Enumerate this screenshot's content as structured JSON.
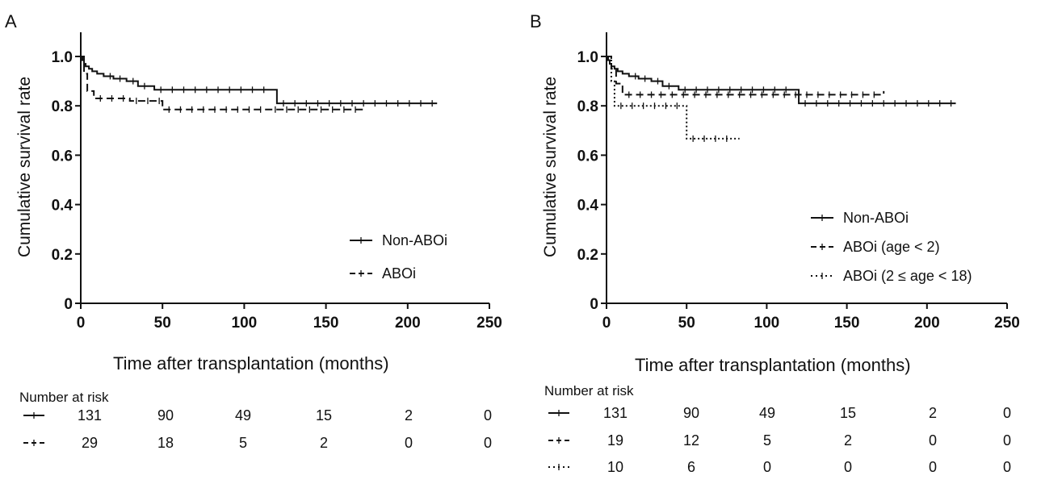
{
  "panels": [
    {
      "label": "A",
      "ylabel": "Cumulative survival rate",
      "xlabel": "Time after transplantation (months)",
      "risk_title": "Number at risk",
      "legend": [
        {
          "name": "Non-ABOi",
          "style": "solid"
        },
        {
          "name": "ABOi",
          "style": "dashed"
        }
      ],
      "risk_table": [
        {
          "style": "solid",
          "values": [
            131,
            90,
            49,
            15,
            2,
            0
          ]
        },
        {
          "style": "dashed",
          "values": [
            29,
            18,
            5,
            2,
            0,
            0
          ]
        }
      ]
    },
    {
      "label": "B",
      "ylabel": "Cumulative survival rate",
      "xlabel": "Time after transplantation (months)",
      "risk_title": "Number at risk",
      "legend": [
        {
          "name": "Non-ABOi",
          "style": "solid"
        },
        {
          "name": "ABOi (age < 2)",
          "style": "dashed"
        },
        {
          "name": "ABOi (2 ≤ age < 18)",
          "style": "dotted"
        }
      ],
      "risk_table": [
        {
          "style": "solid",
          "values": [
            131,
            90,
            49,
            15,
            2,
            0
          ]
        },
        {
          "style": "dashed",
          "values": [
            19,
            12,
            5,
            2,
            0,
            0
          ]
        },
        {
          "style": "dotted",
          "values": [
            10,
            6,
            0,
            0,
            0,
            0
          ]
        }
      ]
    }
  ],
  "chart_data": [
    {
      "type": "line",
      "title": "",
      "xlabel": "Time after transplantation (months)",
      "ylabel": "Cumulative survival rate",
      "xlim": [
        0,
        250
      ],
      "ylim": [
        0,
        1.0
      ],
      "xticks": [
        0,
        50,
        100,
        150,
        200,
        250
      ],
      "yticks": [
        0,
        0.2,
        0.4,
        0.6,
        0.8,
        1.0
      ],
      "grid": false,
      "legend_position": "lower-right",
      "series": [
        {
          "name": "Non-ABOi",
          "style": "solid",
          "x": [
            0,
            1,
            2,
            3,
            5,
            7,
            10,
            14,
            20,
            28,
            35,
            45,
            120,
            218
          ],
          "y": [
            1.0,
            0.985,
            0.97,
            0.96,
            0.95,
            0.94,
            0.93,
            0.92,
            0.91,
            0.9,
            0.88,
            0.865,
            0.81,
            0.81
          ]
        },
        {
          "name": "ABOi",
          "style": "dashed",
          "x": [
            0,
            2,
            4,
            8,
            30,
            50,
            115,
            173
          ],
          "y": [
            1.0,
            0.93,
            0.86,
            0.83,
            0.82,
            0.785,
            0.785,
            0.785
          ]
        }
      ]
    },
    {
      "type": "line",
      "title": "",
      "xlabel": "Time after transplantation (months)",
      "ylabel": "Cumulative survival rate",
      "xlim": [
        0,
        250
      ],
      "ylim": [
        0,
        1.0
      ],
      "xticks": [
        0,
        50,
        100,
        150,
        200,
        250
      ],
      "yticks": [
        0,
        0.2,
        0.4,
        0.6,
        0.8,
        1.0
      ],
      "grid": false,
      "legend_position": "lower-right",
      "series": [
        {
          "name": "Non-ABOi",
          "style": "solid",
          "x": [
            0,
            1,
            2,
            3,
            5,
            7,
            10,
            14,
            20,
            28,
            35,
            45,
            120,
            218
          ],
          "y": [
            1.0,
            0.985,
            0.97,
            0.96,
            0.95,
            0.94,
            0.93,
            0.92,
            0.91,
            0.9,
            0.88,
            0.865,
            0.81,
            0.81
          ]
        },
        {
          "name": "ABOi (age < 2)",
          "style": "dashed",
          "x": [
            0,
            3,
            6,
            10,
            30,
            173
          ],
          "y": [
            1.0,
            0.95,
            0.89,
            0.845,
            0.845,
            0.86
          ]
        },
        {
          "name": "ABOi (2 ≤ age < 18)",
          "style": "dotted",
          "x": [
            0,
            3,
            5,
            50,
            83
          ],
          "y": [
            1.0,
            0.9,
            0.8,
            0.667,
            0.667
          ]
        }
      ]
    }
  ]
}
